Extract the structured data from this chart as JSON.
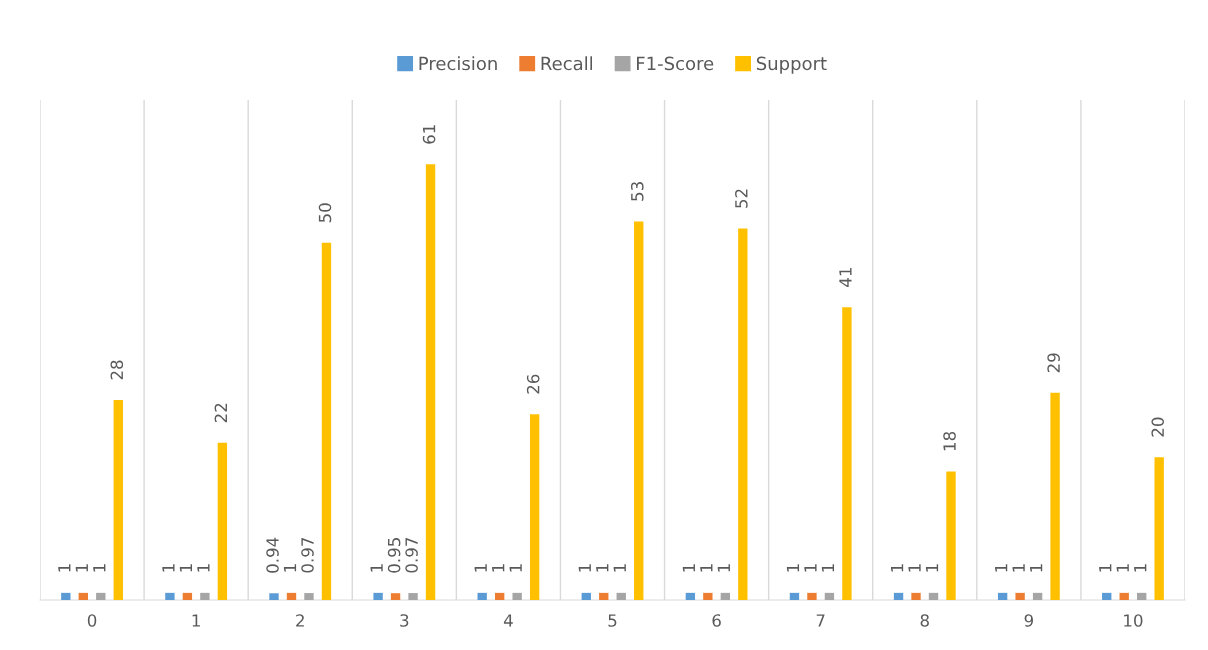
{
  "chart_data": {
    "type": "bar",
    "categories": [
      "0",
      "1",
      "2",
      "3",
      "4",
      "5",
      "6",
      "7",
      "8",
      "9",
      "10"
    ],
    "series": [
      {
        "name": "Precision",
        "color": "#5b9bd5",
        "values": [
          1,
          1,
          0.94,
          1,
          1,
          1,
          1,
          1,
          1,
          1,
          1
        ]
      },
      {
        "name": "Recall",
        "color": "#ed7d31",
        "values": [
          1,
          1,
          1,
          0.95,
          1,
          1,
          1,
          1,
          1,
          1,
          1
        ]
      },
      {
        "name": "F1-Score",
        "color": "#a5a5a5",
        "values": [
          1,
          1,
          0.97,
          0.97,
          1,
          1,
          1,
          1,
          1,
          1,
          1
        ]
      },
      {
        "name": "Support",
        "color": "#ffc000",
        "values": [
          28,
          22,
          50,
          61,
          26,
          53,
          52,
          41,
          18,
          29,
          20
        ]
      }
    ],
    "ylim": [
      0,
      70
    ],
    "tick_labels": "x",
    "grid": "x",
    "legend": "top",
    "data_labels": true
  }
}
